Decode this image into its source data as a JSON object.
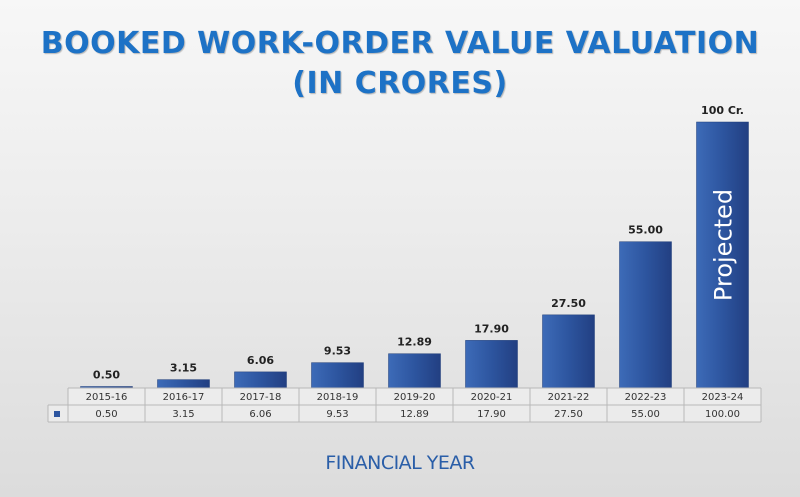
{
  "chart_data": {
    "type": "bar",
    "title_lines": [
      "BOOKED WORK-ORDER VALUE VALUATION",
      "(IN CRORES)"
    ],
    "xlabel": "FINANCIAL YEAR",
    "ylabel": "",
    "categories": [
      "2015-16",
      "2016-17",
      "2017-18",
      "2018-19",
      "2019-20",
      "2020-21",
      "2021-22",
      "2022-23",
      "2023-24"
    ],
    "values": [
      0.5,
      3.15,
      6.06,
      9.53,
      12.89,
      17.9,
      27.5,
      55.0,
      100.0
    ],
    "data_labels": [
      "0.50",
      "3.15",
      "6.06",
      "9.53",
      "12.89",
      "17.90",
      "27.50",
      "55.00",
      "100 Cr."
    ],
    "table_values": [
      "0.50",
      "3.15",
      "6.06",
      "9.53",
      "12.89",
      "17.90",
      "27.50",
      "55.00",
      "100.00"
    ],
    "bar_annotation": {
      "category": "2023-24",
      "text": "Projected"
    },
    "ylim": [
      0,
      100
    ],
    "grid": false,
    "legend": "data-table",
    "bar_color": "#2d559f",
    "title_color": "#1d72c6"
  }
}
